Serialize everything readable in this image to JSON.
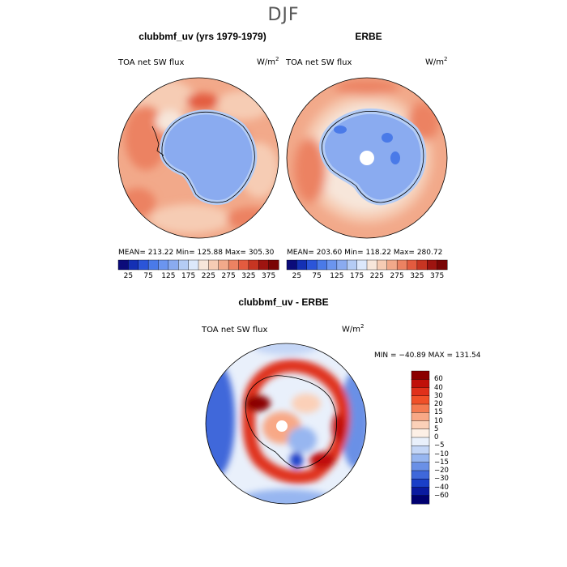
{
  "figure": {
    "season": "DJF"
  },
  "panels": {
    "model": {
      "title": "clubbmf_uv (yrs 1979-1979)",
      "variable": "TOA net SW flux",
      "units_base": "W/m",
      "units_exp": "2",
      "stats": "MEAN= 213.22   Min= 125.88   Max= 305.30"
    },
    "obs": {
      "title": "ERBE",
      "variable": "TOA net SW flux",
      "units_base": "W/m",
      "units_exp": "2",
      "stats": "MEAN= 203.60   Min= 118.22   Max= 280.72"
    },
    "diff": {
      "title": "clubbmf_uv - ERBE",
      "variable": "TOA net SW flux",
      "units_base": "W/m",
      "units_exp": "2",
      "stats": "MIN = −40.89  MAX = 131.54"
    }
  },
  "chart_data": [
    {
      "type": "heatmap",
      "projection": "south-polar-stereographic",
      "title": "clubbmf_uv (yrs 1979-1979)",
      "variable": "TOA net SW flux",
      "units": "W/m^2",
      "mean": 213.22,
      "min": 125.88,
      "max": 305.3,
      "colorbar_levels": [
        25,
        50,
        75,
        100,
        125,
        150,
        175,
        200,
        225,
        250,
        275,
        300,
        325,
        350,
        375
      ],
      "colorbar_labels": [
        "25",
        "75",
        "125",
        "175",
        "225",
        "275",
        "325",
        "375"
      ],
      "colors": [
        "#0b0b7a",
        "#1430b4",
        "#2b55d9",
        "#4a7ae8",
        "#6b95ef",
        "#8aabf0",
        "#b4ccf5",
        "#dce8fb",
        "#f7e6da",
        "#f6ccb4",
        "#f2a98a",
        "#ec8262",
        "#e35b3f",
        "#c73522",
        "#9e1410",
        "#7a0505"
      ]
    },
    {
      "type": "heatmap",
      "projection": "south-polar-stereographic",
      "title": "ERBE",
      "variable": "TOA net SW flux",
      "units": "W/m^2",
      "mean": 203.6,
      "min": 118.22,
      "max": 280.72,
      "colorbar_levels": [
        25,
        50,
        75,
        100,
        125,
        150,
        175,
        200,
        225,
        250,
        275,
        300,
        325,
        350,
        375
      ],
      "colorbar_labels": [
        "25",
        "75",
        "125",
        "175",
        "225",
        "275",
        "325",
        "375"
      ],
      "colors": [
        "#0b0b7a",
        "#1430b4",
        "#2b55d9",
        "#4a7ae8",
        "#6b95ef",
        "#8aabf0",
        "#b4ccf5",
        "#dce8fb",
        "#f7e6da",
        "#f6ccb4",
        "#f2a98a",
        "#ec8262",
        "#e35b3f",
        "#c73522",
        "#9e1410",
        "#7a0505"
      ]
    },
    {
      "type": "heatmap",
      "projection": "south-polar-stereographic",
      "title": "clubbmf_uv - ERBE",
      "variable": "TOA net SW flux",
      "units": "W/m^2",
      "min": -40.89,
      "max": 131.54,
      "colorbar_labels": [
        "60",
        "40",
        "30",
        "20",
        "15",
        "10",
        "5",
        "0",
        "−5",
        "−10",
        "−15",
        "−20",
        "−30",
        "−40",
        "−60"
      ],
      "colors": [
        "#8b0000",
        "#c0100a",
        "#e0301a",
        "#f05028",
        "#f47a50",
        "#f8a886",
        "#fbd0b8",
        "#fdf0e6",
        "#e9f0fb",
        "#c4d6f6",
        "#97b6f0",
        "#6a90e6",
        "#3f68da",
        "#1a3fc8",
        "#0a1aa0",
        "#000070"
      ]
    }
  ]
}
